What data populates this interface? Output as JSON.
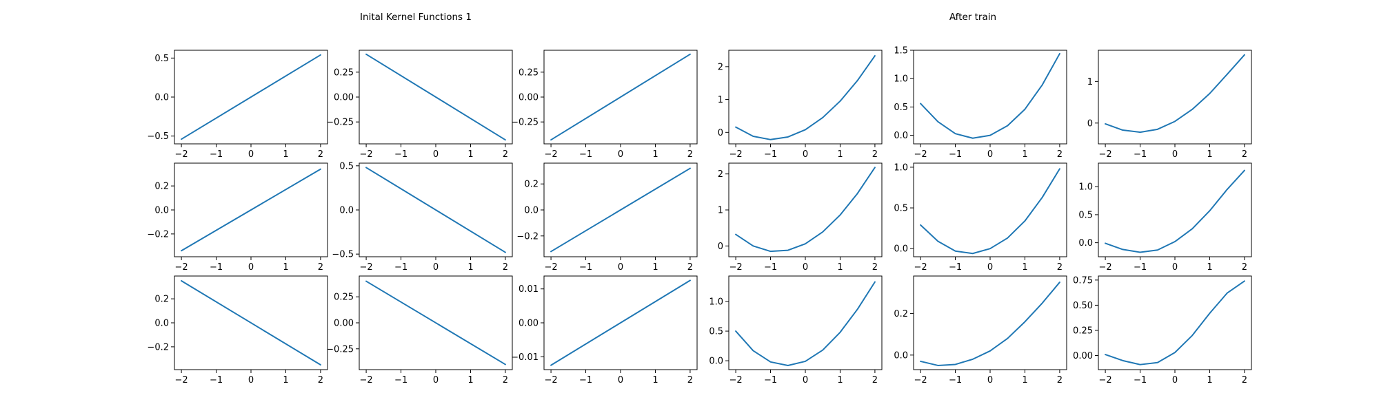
{
  "titles": {
    "left": "Inital Kernel Functions 1",
    "right": "After train"
  },
  "chart_data": [
    {
      "type": "line",
      "group": "left",
      "xlim": [
        -2.2,
        2.2
      ],
      "ylim": [
        -0.6,
        0.6
      ],
      "xticks": [
        -2,
        -1,
        0,
        1,
        2
      ],
      "yticks": [
        {
          "v": 0.5,
          "label": "0.5"
        },
        {
          "v": 0.0,
          "label": "0.0"
        },
        {
          "v": -0.5,
          "label": "−0.5"
        }
      ],
      "x": [
        -2,
        2
      ],
      "y": [
        -0.54,
        0.54
      ]
    },
    {
      "type": "line",
      "group": "left",
      "xlim": [
        -2.2,
        2.2
      ],
      "ylim": [
        -0.47,
        0.47
      ],
      "xticks": [
        -2,
        -1,
        0,
        1,
        2
      ],
      "yticks": [
        {
          "v": 0.25,
          "label": "0.25"
        },
        {
          "v": 0.0,
          "label": "0.00"
        },
        {
          "v": -0.25,
          "label": "−0.25"
        }
      ],
      "x": [
        -2,
        2
      ],
      "y": [
        0.43,
        -0.43
      ]
    },
    {
      "type": "line",
      "group": "left",
      "xlim": [
        -2.2,
        2.2
      ],
      "ylim": [
        -0.47,
        0.47
      ],
      "xticks": [
        -2,
        -1,
        0,
        1,
        2
      ],
      "yticks": [
        {
          "v": 0.25,
          "label": "0.25"
        },
        {
          "v": 0.0,
          "label": "0.00"
        },
        {
          "v": -0.25,
          "label": "−0.25"
        }
      ],
      "x": [
        -2,
        2
      ],
      "y": [
        -0.43,
        0.43
      ]
    },
    {
      "type": "line",
      "group": "right",
      "xlim": [
        -2.2,
        2.2
      ],
      "ylim": [
        -0.35,
        2.5
      ],
      "xticks": [
        -2,
        -1,
        0,
        1,
        2
      ],
      "yticks": [
        {
          "v": 2,
          "label": "2"
        },
        {
          "v": 1,
          "label": "1"
        },
        {
          "v": 0,
          "label": "0"
        }
      ],
      "x": [
        -2,
        -1.5,
        -1,
        -0.5,
        0,
        0.5,
        1,
        1.5,
        2
      ],
      "y": [
        0.16,
        -0.12,
        -0.22,
        -0.14,
        0.08,
        0.45,
        0.95,
        1.58,
        2.33
      ]
    },
    {
      "type": "line",
      "group": "right",
      "xlim": [
        -2.2,
        2.2
      ],
      "ylim": [
        -0.15,
        1.5
      ],
      "xticks": [
        -2,
        -1,
        0,
        1,
        2
      ],
      "yticks": [
        {
          "v": 1.5,
          "label": "1.5"
        },
        {
          "v": 1.0,
          "label": "1.0"
        },
        {
          "v": 0.5,
          "label": "0.5"
        },
        {
          "v": 0.0,
          "label": "0.0"
        }
      ],
      "x": [
        -2,
        -1.5,
        -1,
        -0.5,
        0,
        0.5,
        1,
        1.5,
        2
      ],
      "y": [
        0.56,
        0.24,
        0.03,
        -0.05,
        0.0,
        0.17,
        0.46,
        0.89,
        1.44
      ]
    },
    {
      "type": "line",
      "group": "right",
      "xlim": [
        -2.2,
        2.2
      ],
      "ylim": [
        -0.5,
        1.75
      ],
      "xticks": [
        -2,
        -1,
        0,
        1,
        2
      ],
      "yticks": [
        {
          "v": 1,
          "label": "1"
        },
        {
          "v": 0,
          "label": "0"
        }
      ],
      "x": [
        -2,
        -1.5,
        -1,
        -0.5,
        0,
        0.5,
        1,
        1.5,
        2
      ],
      "y": [
        -0.02,
        -0.17,
        -0.22,
        -0.15,
        0.04,
        0.33,
        0.71,
        1.17,
        1.64
      ]
    },
    {
      "type": "line",
      "group": "left",
      "xlim": [
        -2.2,
        2.2
      ],
      "ylim": [
        -0.39,
        0.39
      ],
      "xticks": [
        -2,
        -1,
        0,
        1,
        2
      ],
      "yticks": [
        {
          "v": 0.2,
          "label": "0.2"
        },
        {
          "v": 0.0,
          "label": "0.0"
        },
        {
          "v": -0.2,
          "label": "−0.2"
        }
      ],
      "x": [
        -2,
        2
      ],
      "y": [
        -0.34,
        0.34
      ]
    },
    {
      "type": "line",
      "group": "left",
      "xlim": [
        -2.2,
        2.2
      ],
      "ylim": [
        -0.53,
        0.53
      ],
      "xticks": [
        -2,
        -1,
        0,
        1,
        2
      ],
      "yticks": [
        {
          "v": 0.5,
          "label": "0.5"
        },
        {
          "v": 0.0,
          "label": "0.0"
        },
        {
          "v": -0.5,
          "label": "−0.5"
        }
      ],
      "x": [
        -2,
        2
      ],
      "y": [
        0.48,
        -0.48
      ]
    },
    {
      "type": "line",
      "group": "left",
      "xlim": [
        -2.2,
        2.2
      ],
      "ylim": [
        -0.36,
        0.36
      ],
      "xticks": [
        -2,
        -1,
        0,
        1,
        2
      ],
      "yticks": [
        {
          "v": 0.2,
          "label": "0.2"
        },
        {
          "v": 0.0,
          "label": "0.0"
        },
        {
          "v": -0.2,
          "label": "−0.2"
        }
      ],
      "x": [
        -2,
        2
      ],
      "y": [
        -0.32,
        0.32
      ]
    },
    {
      "type": "line",
      "group": "right",
      "xlim": [
        -2.2,
        2.2
      ],
      "ylim": [
        -0.3,
        2.3
      ],
      "xticks": [
        -2,
        -1,
        0,
        1,
        2
      ],
      "yticks": [
        {
          "v": 2,
          "label": "2"
        },
        {
          "v": 1,
          "label": "1"
        },
        {
          "v": 0,
          "label": "0"
        }
      ],
      "x": [
        -2,
        -1.5,
        -1,
        -0.5,
        0,
        0.5,
        1,
        1.5,
        2
      ],
      "y": [
        0.32,
        0.0,
        -0.15,
        -0.12,
        0.06,
        0.39,
        0.86,
        1.46,
        2.18
      ]
    },
    {
      "type": "line",
      "group": "right",
      "xlim": [
        -2.2,
        2.2
      ],
      "ylim": [
        -0.1,
        1.05
      ],
      "xticks": [
        -2,
        -1,
        0,
        1,
        2
      ],
      "yticks": [
        {
          "v": 1.0,
          "label": "1.0"
        },
        {
          "v": 0.5,
          "label": "0.5"
        },
        {
          "v": 0.0,
          "label": "0.0"
        }
      ],
      "x": [
        -2,
        -1.5,
        -1,
        -0.5,
        0,
        0.5,
        1,
        1.5,
        2
      ],
      "y": [
        0.29,
        0.09,
        -0.03,
        -0.06,
        0.0,
        0.13,
        0.34,
        0.63,
        0.98
      ]
    },
    {
      "type": "line",
      "group": "right",
      "xlim": [
        -2.2,
        2.2
      ],
      "ylim": [
        -0.25,
        1.42
      ],
      "xticks": [
        -2,
        -1,
        0,
        1,
        2
      ],
      "yticks": [
        {
          "v": 1.0,
          "label": "1.0"
        },
        {
          "v": 0.5,
          "label": "0.5"
        },
        {
          "v": 0.0,
          "label": "0.0"
        }
      ],
      "x": [
        -2,
        -1.5,
        -1,
        -0.5,
        0,
        0.5,
        1,
        1.5,
        2
      ],
      "y": [
        -0.01,
        -0.12,
        -0.17,
        -0.13,
        0.02,
        0.25,
        0.57,
        0.95,
        1.29
      ]
    },
    {
      "type": "line",
      "group": "left",
      "xlim": [
        -2.2,
        2.2
      ],
      "ylim": [
        -0.39,
        0.39
      ],
      "xticks": [
        -2,
        -1,
        0,
        1,
        2
      ],
      "yticks": [
        {
          "v": 0.2,
          "label": "0.2"
        },
        {
          "v": 0.0,
          "label": "0.0"
        },
        {
          "v": -0.2,
          "label": "−0.2"
        }
      ],
      "x": [
        -2,
        2
      ],
      "y": [
        0.35,
        -0.35
      ]
    },
    {
      "type": "line",
      "group": "left",
      "xlim": [
        -2.2,
        2.2
      ],
      "ylim": [
        -0.45,
        0.45
      ],
      "xticks": [
        -2,
        -1,
        0,
        1,
        2
      ],
      "yticks": [
        {
          "v": 0.25,
          "label": "0.25"
        },
        {
          "v": 0.0,
          "label": "0.00"
        },
        {
          "v": -0.25,
          "label": "−0.25"
        }
      ],
      "x": [
        -2,
        2
      ],
      "y": [
        0.4,
        -0.4
      ]
    },
    {
      "type": "line",
      "group": "left",
      "xlim": [
        -2.2,
        2.2
      ],
      "ylim": [
        -0.0138,
        0.0138
      ],
      "xticks": [
        -2,
        -1,
        0,
        1,
        2
      ],
      "yticks": [
        {
          "v": 0.01,
          "label": "0.01"
        },
        {
          "v": 0.0,
          "label": "0.00"
        },
        {
          "v": -0.01,
          "label": "−0.01"
        }
      ],
      "x": [
        -2,
        2
      ],
      "y": [
        -0.0125,
        0.0125
      ]
    },
    {
      "type": "line",
      "group": "right",
      "xlim": [
        -2.2,
        2.2
      ],
      "ylim": [
        -0.15,
        1.43
      ],
      "xticks": [
        -2,
        -1,
        0,
        1,
        2
      ],
      "yticks": [
        {
          "v": 1.0,
          "label": "1.0"
        },
        {
          "v": 0.5,
          "label": "0.5"
        },
        {
          "v": 0.0,
          "label": "0.0"
        }
      ],
      "x": [
        -2,
        -1.5,
        -1,
        -0.5,
        0,
        0.5,
        1,
        1.5,
        2
      ],
      "y": [
        0.5,
        0.17,
        -0.02,
        -0.08,
        -0.01,
        0.18,
        0.48,
        0.87,
        1.33
      ]
    },
    {
      "type": "line",
      "group": "right",
      "xlim": [
        -2.2,
        2.2
      ],
      "ylim": [
        -0.07,
        0.38
      ],
      "xticks": [
        -2,
        -1,
        0,
        1,
        2
      ],
      "yticks": [
        {
          "v": 0.2,
          "label": "0.2"
        },
        {
          "v": 0.0,
          "label": "0.0"
        }
      ],
      "x": [
        -2,
        -1.5,
        -1,
        -0.5,
        0,
        0.5,
        1,
        1.5,
        2
      ],
      "y": [
        -0.03,
        -0.05,
        -0.045,
        -0.02,
        0.02,
        0.08,
        0.16,
        0.25,
        0.35
      ]
    },
    {
      "type": "line",
      "group": "right",
      "xlim": [
        -2.2,
        2.2
      ],
      "ylim": [
        -0.14,
        0.79
      ],
      "xticks": [
        -2,
        -1,
        0,
        1,
        2
      ],
      "yticks": [
        {
          "v": 0.75,
          "label": "0.75"
        },
        {
          "v": 0.5,
          "label": "0.50"
        },
        {
          "v": 0.25,
          "label": "0.25"
        },
        {
          "v": 0.0,
          "label": "0.00"
        }
      ],
      "x": [
        -2,
        -1.5,
        -1,
        -0.5,
        0,
        0.5,
        1,
        1.5,
        2
      ],
      "y": [
        0.01,
        -0.05,
        -0.09,
        -0.07,
        0.03,
        0.2,
        0.42,
        0.62,
        0.74
      ]
    }
  ]
}
